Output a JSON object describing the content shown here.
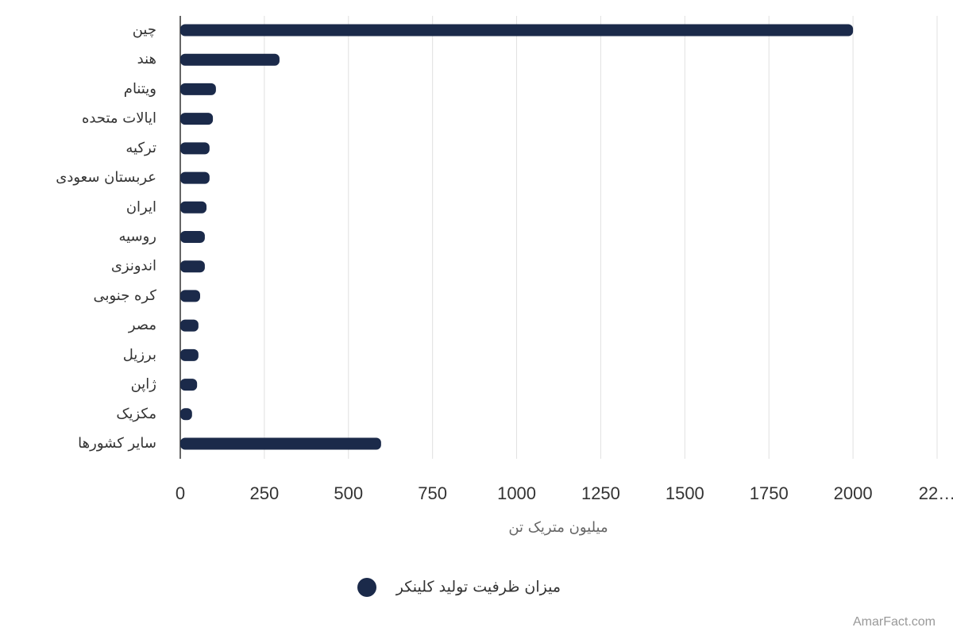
{
  "chart_data": {
    "type": "barh",
    "categories": [
      "چین",
      "هند",
      "ویتنام",
      "ایالات متحده",
      "ترکیه",
      "عربستان سعودی",
      "ایران",
      "روسیه",
      "اندونزی",
      "کره جنوبی",
      "مصر",
      "برزیل",
      "ژاپن",
      "مکزیک",
      "سایر کشورها"
    ],
    "series": [
      {
        "name": "میزان ظرفیت تولید کلینکر",
        "color": "#1b2a4a",
        "values": [
          2000,
          295,
          106,
          97,
          87,
          87,
          78,
          73,
          73,
          59,
          54,
          54,
          50,
          35,
          597
        ]
      }
    ],
    "xlabel": "میلیون متریک تن",
    "xlim": [
      0,
      2250
    ],
    "xticks": [
      0,
      250,
      500,
      750,
      1000,
      1250,
      1500,
      1750,
      2000,
      {
        "value": 2250,
        "label": "22…"
      }
    ],
    "grid": true,
    "legend": "bottom",
    "watermark": "AmarFact.com"
  }
}
